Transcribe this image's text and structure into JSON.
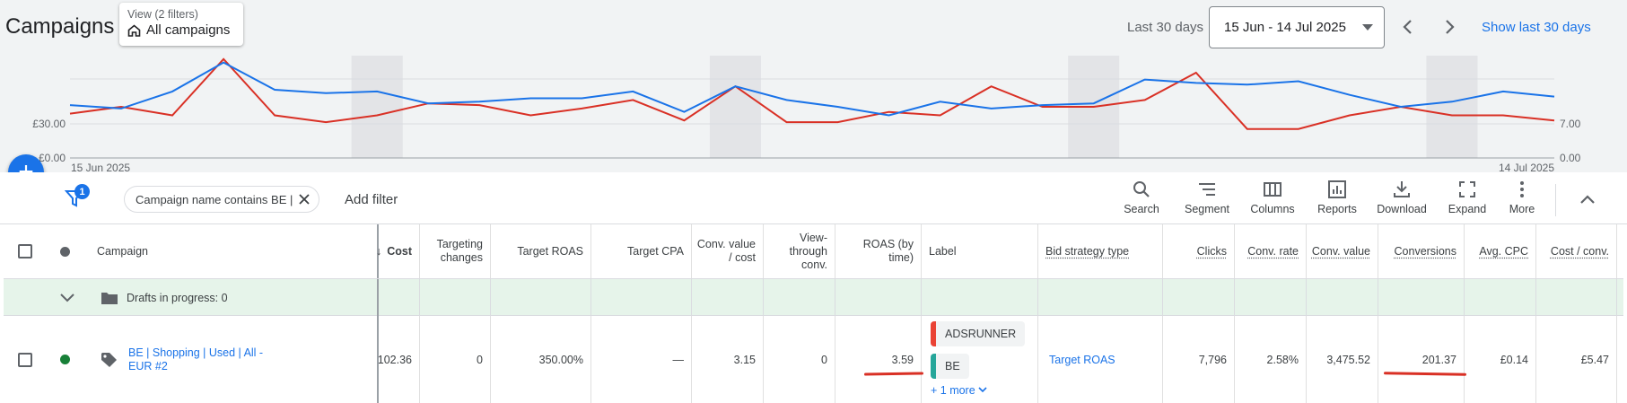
{
  "header": {
    "title": "Campaigns",
    "view_sub": "View (2 filters)",
    "view_main": "All campaigns",
    "range_label": "Last 30 days",
    "date_range": "15 Jun - 14 Jul 2025",
    "show_last": "Show last 30 days"
  },
  "chart_data": {
    "type": "line",
    "x_start_label": "15 Jun 2025",
    "x_end_label": "14 Jul 2025",
    "y_left_ticks": [
      "£0.00",
      "£30.00"
    ],
    "y_right_ticks": [
      "0.00",
      "7.00"
    ],
    "series": [
      {
        "color": "#1a73e8",
        "values": [
          31,
          29,
          39,
          56,
          40,
          38,
          39,
          32,
          33,
          35,
          35,
          39,
          27,
          42,
          34,
          30,
          25,
          33,
          29,
          31,
          32,
          46,
          44,
          43,
          45,
          37,
          30,
          33,
          39,
          36
        ]
      },
      {
        "color": "#d93025",
        "values": [
          26,
          30,
          25,
          58,
          25,
          21,
          25,
          32,
          31,
          25,
          29,
          34,
          22,
          42,
          21,
          21,
          27,
          25,
          42,
          30,
          30,
          34,
          50,
          17,
          17,
          25,
          30,
          25,
          25,
          22
        ]
      }
    ],
    "shaded_week_columns": true
  },
  "toolbar": {
    "filter_count": "1",
    "filter_chip": "Campaign name contains BE |",
    "add_filter": "Add filter",
    "tools": [
      "Search",
      "Segment",
      "Columns",
      "Reports",
      "Download",
      "Expand",
      "More"
    ]
  },
  "columns": {
    "campaign": "Campaign",
    "cost": "Cost",
    "targeting_changes": "Targeting changes",
    "target_roas": "Target ROAS",
    "target_cpa": "Target CPA",
    "conv_value_cost": "Conv. value / cost",
    "view_through": "View-through conv.",
    "roas_by_time": "ROAS (by time)",
    "label": "Label",
    "bid_strategy": "Bid strategy type",
    "clicks": "Clicks",
    "conv_rate": "Conv. rate",
    "conv_value": "Conv. value",
    "conversions": "Conversions",
    "avg_cpc": "Avg. CPC",
    "cost_per_conv": "Cost / conv."
  },
  "drafts": {
    "label": "Drafts in progress: 0"
  },
  "row": {
    "campaign": "BE | Shopping | Used |  All - EUR #2",
    "cost": ".102.36",
    "targeting_changes": "0",
    "target_roas": "350.00%",
    "target_cpa": "—",
    "conv_value_cost": "3.15",
    "view_through": "0",
    "roas_by_time": "3.59",
    "labels": [
      {
        "name": "ADSRUNNER",
        "color": "#ea4335"
      },
      {
        "name": "BE",
        "color": "#26a69a"
      }
    ],
    "more_labels": "+ 1 more",
    "bid_strategy": "Target ROAS",
    "clicks": "7,796",
    "conv_rate": "2.58%",
    "conv_value": "3,475.52",
    "conversions": "201.37",
    "avg_cpc": "£0.14",
    "cost_per_conv": "£5.47"
  }
}
